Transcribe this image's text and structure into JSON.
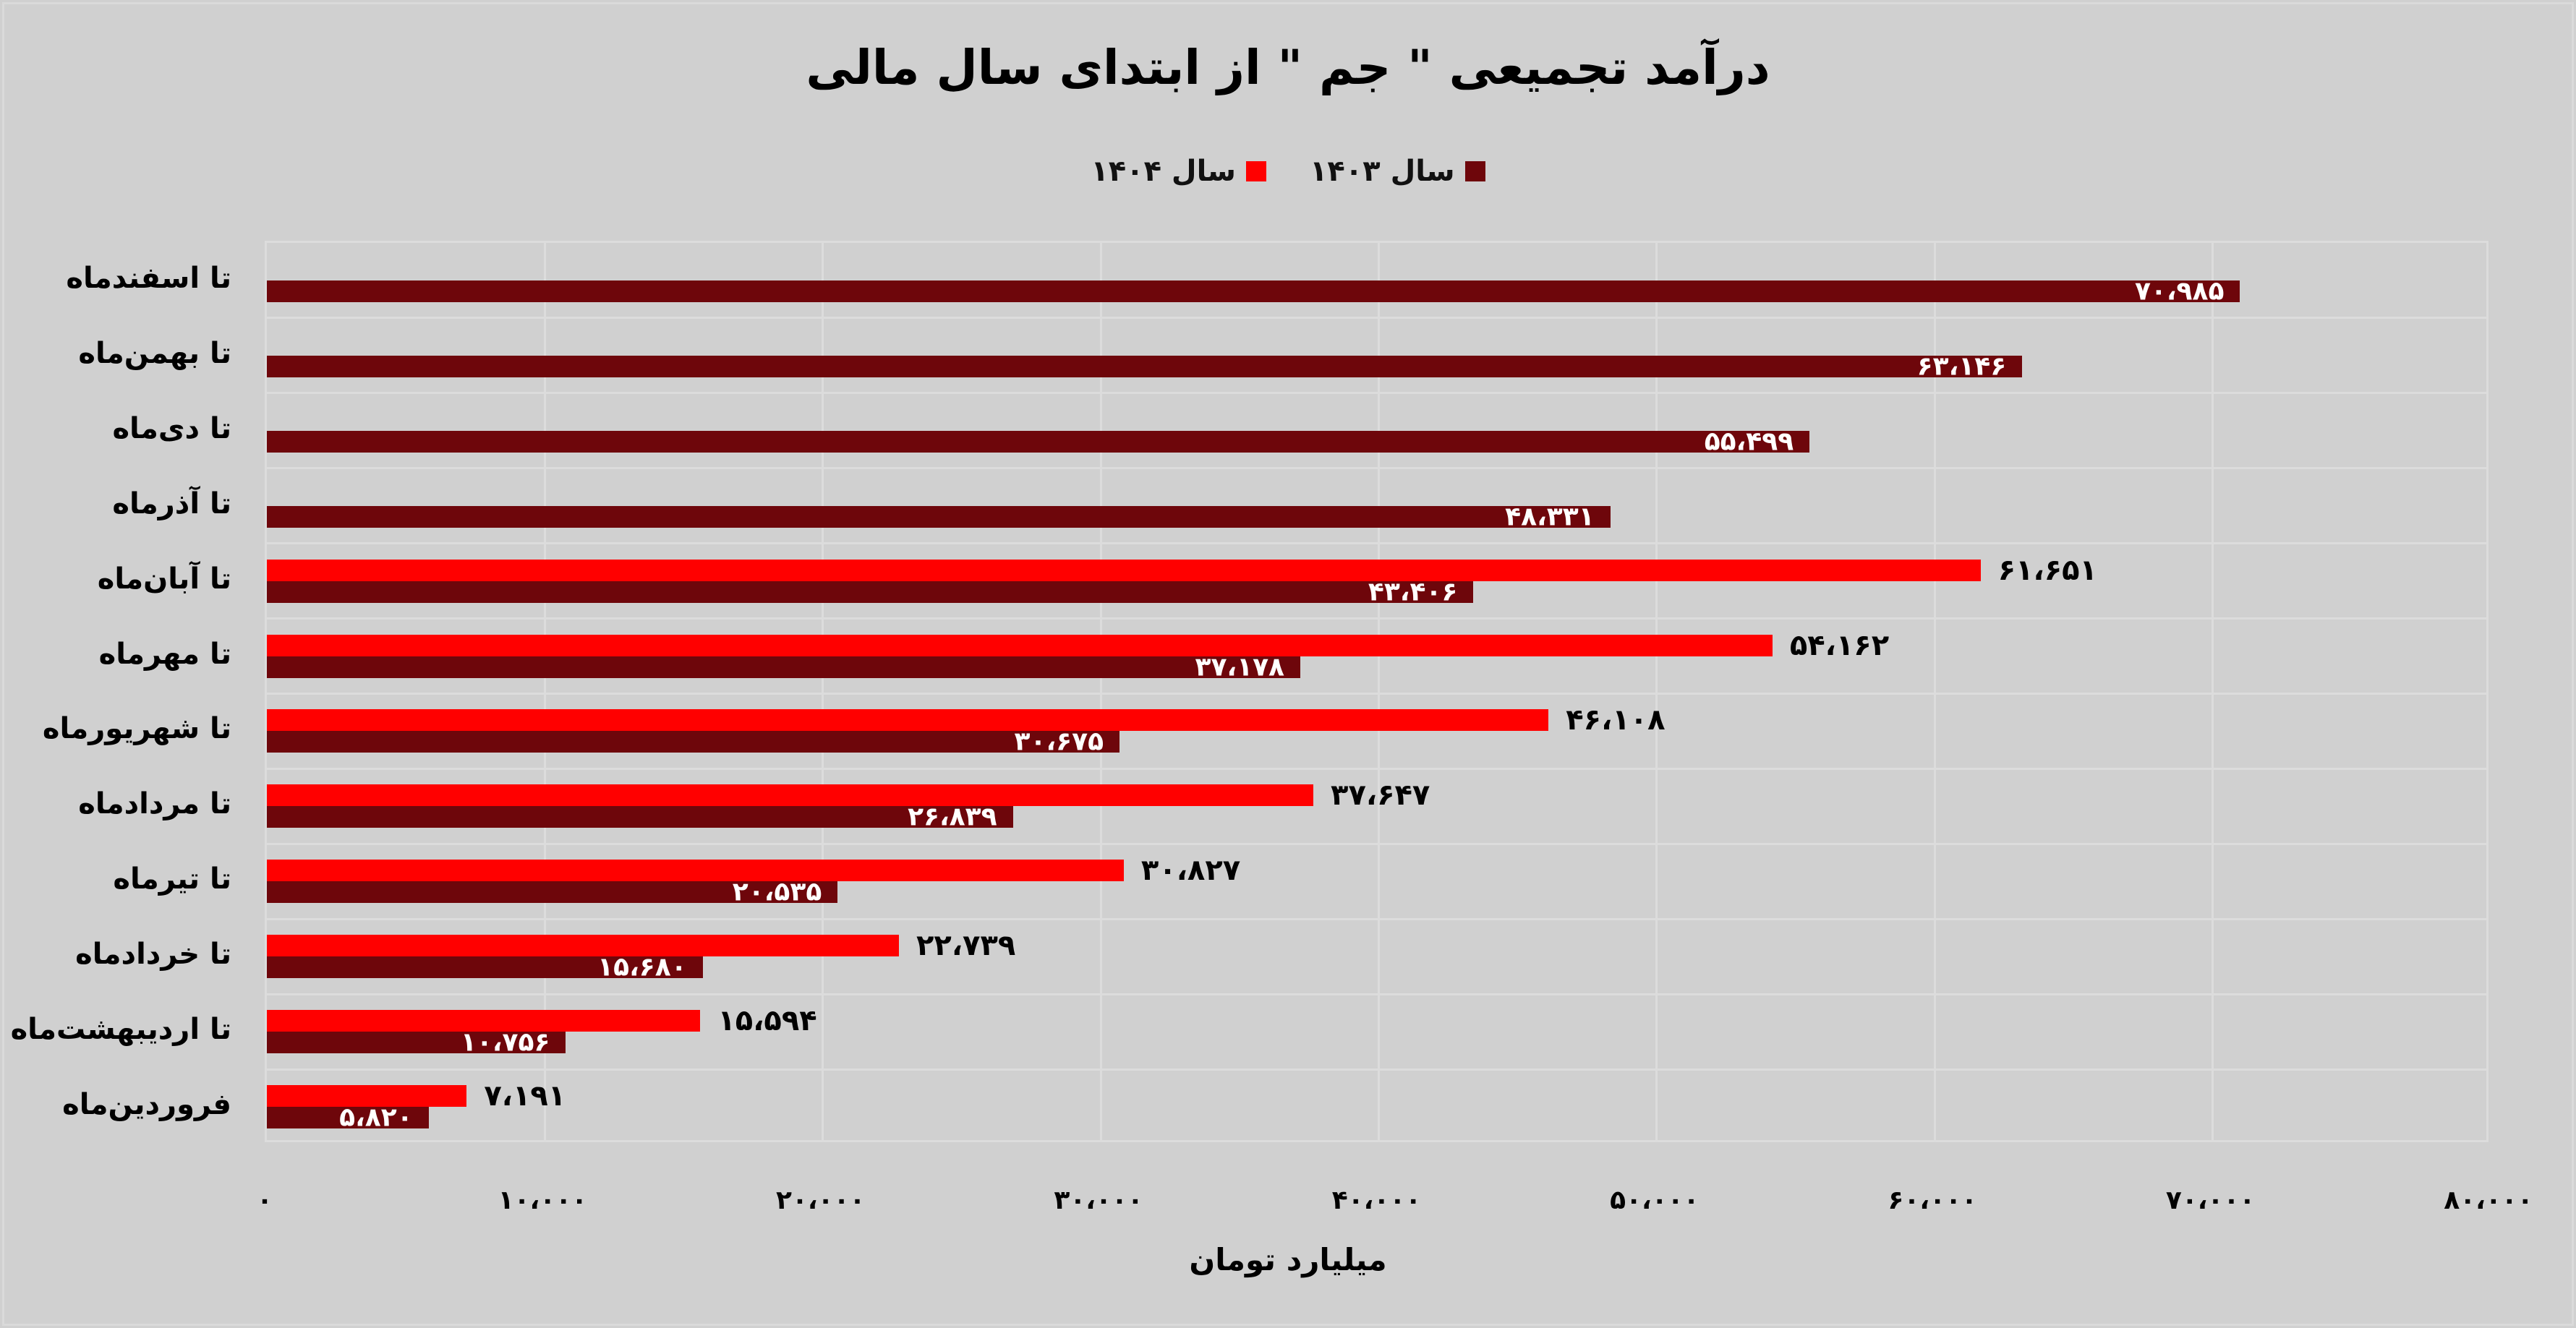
{
  "chart_data": {
    "type": "bar",
    "orientation": "horizontal",
    "title": "درآمد تجمیعی \" جم \" از ابتدای سال مالی",
    "xlabel": "میلیارد تومان",
    "ylabel": "",
    "xlim": [
      0,
      80000
    ],
    "grid": true,
    "legend_position": "top",
    "x_ticks": [
      0,
      10000,
      20000,
      30000,
      40000,
      50000,
      60000,
      70000,
      80000
    ],
    "x_tick_labels": [
      "۰",
      "۱۰،۰۰۰",
      "۲۰،۰۰۰",
      "۳۰،۰۰۰",
      "۴۰،۰۰۰",
      "۵۰،۰۰۰",
      "۶۰،۰۰۰",
      "۷۰،۰۰۰",
      "۸۰،۰۰۰"
    ],
    "categories": [
      "تا اسفندماه",
      "تا بهمن‌ماه",
      "تا دی‌ماه",
      "تا آذرماه",
      "تا آبان‌ماه",
      "تا مهرماه",
      "تا شهریورماه",
      "تا مردادماه",
      "تا تیرماه",
      "تا خردادماه",
      "تا اردیبهشت‌ماه",
      "فروردین‌ماه"
    ],
    "series": [
      {
        "name": "سال ۱۴۰۴",
        "color": "#ff0000",
        "values": [
          null,
          null,
          null,
          null,
          61651,
          54162,
          46108,
          37647,
          30827,
          22739,
          15594,
          7191
        ],
        "labels": [
          null,
          null,
          null,
          null,
          "۶۱،۶۵۱",
          "۵۴،۱۶۲",
          "۴۶،۱۰۸",
          "۳۷،۶۴۷",
          "۳۰،۸۲۷",
          "۲۲،۷۳۹",
          "۱۵،۵۹۴",
          "۷،۱۹۱"
        ]
      },
      {
        "name": "سال ۱۴۰۳",
        "color": "#6e060b",
        "values": [
          70985,
          63146,
          55499,
          48331,
          43406,
          37178,
          30675,
          26839,
          20535,
          15680,
          10756,
          5820
        ],
        "labels": [
          "۷۰،۹۸۵",
          "۶۳،۱۴۶",
          "۵۵،۴۹۹",
          "۴۸،۳۳۱",
          "۴۳،۴۰۶",
          "۳۷،۱۷۸",
          "۳۰،۶۷۵",
          "۲۶،۸۳۹",
          "۲۰،۵۳۵",
          "۱۵،۶۸۰",
          "۱۰،۷۵۶",
          "۵،۸۲۰"
        ]
      }
    ]
  },
  "legend": {
    "items": [
      {
        "label": "سال ۱۴۰۴",
        "color": "#ff0000"
      },
      {
        "label": "سال ۱۴۰۳",
        "color": "#6e060b"
      }
    ]
  }
}
